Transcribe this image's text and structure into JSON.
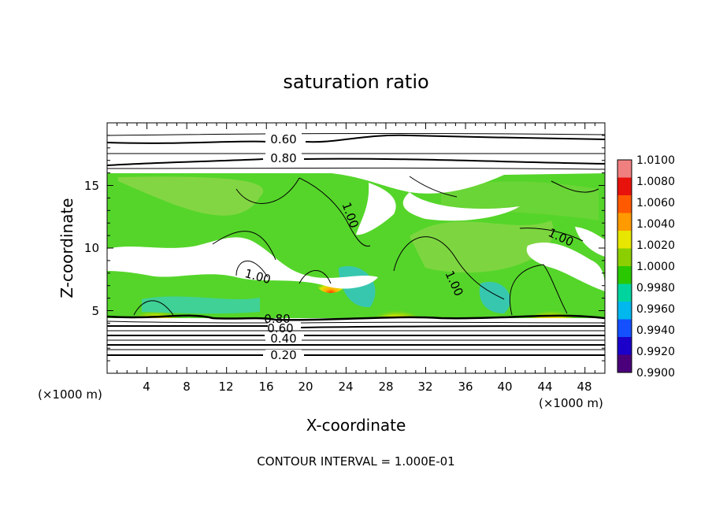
{
  "chart_data": {
    "type": "heatmap",
    "title": "saturation ratio",
    "xlabel": "X-coordinate",
    "ylabel": "Z-coordinate",
    "x_unit": "(×1000 m)",
    "x_unit_right": "(×1000 m)",
    "xlim": [
      0,
      50
    ],
    "ylim": [
      0,
      20
    ],
    "xticks": [
      "4",
      "8",
      "12",
      "16",
      "20",
      "24",
      "28",
      "32",
      "36",
      "40",
      "44",
      "48"
    ],
    "yticks": [
      "5",
      "10",
      "15"
    ],
    "footer": "CONTOUR INTERVAL = 1.000E-01",
    "colorbar": {
      "labels": [
        "1.0100",
        "1.0080",
        "1.0060",
        "1.0040",
        "1.0020",
        "1.0000",
        "0.9980",
        "0.9960",
        "0.9940",
        "0.9920",
        "0.9900"
      ],
      "range": [
        0.99,
        1.01
      ],
      "colors": [
        "#f08080",
        "#e8120c",
        "#ff5a00",
        "#ff9a00",
        "#e6e600",
        "#8ccf00",
        "#2ac800",
        "#00d49e",
        "#00b7ee",
        "#1450ff",
        "#1a00c8",
        "#4a007a"
      ]
    },
    "contour_labels_upper": [
      "0.60",
      "0.80"
    ],
    "contour_labels_lower": [
      "0.80",
      "0.60",
      "0.40",
      "0.20"
    ],
    "contour_labels_mid": [
      "1.00",
      "1.00",
      "1.00",
      "1.00"
    ]
  }
}
